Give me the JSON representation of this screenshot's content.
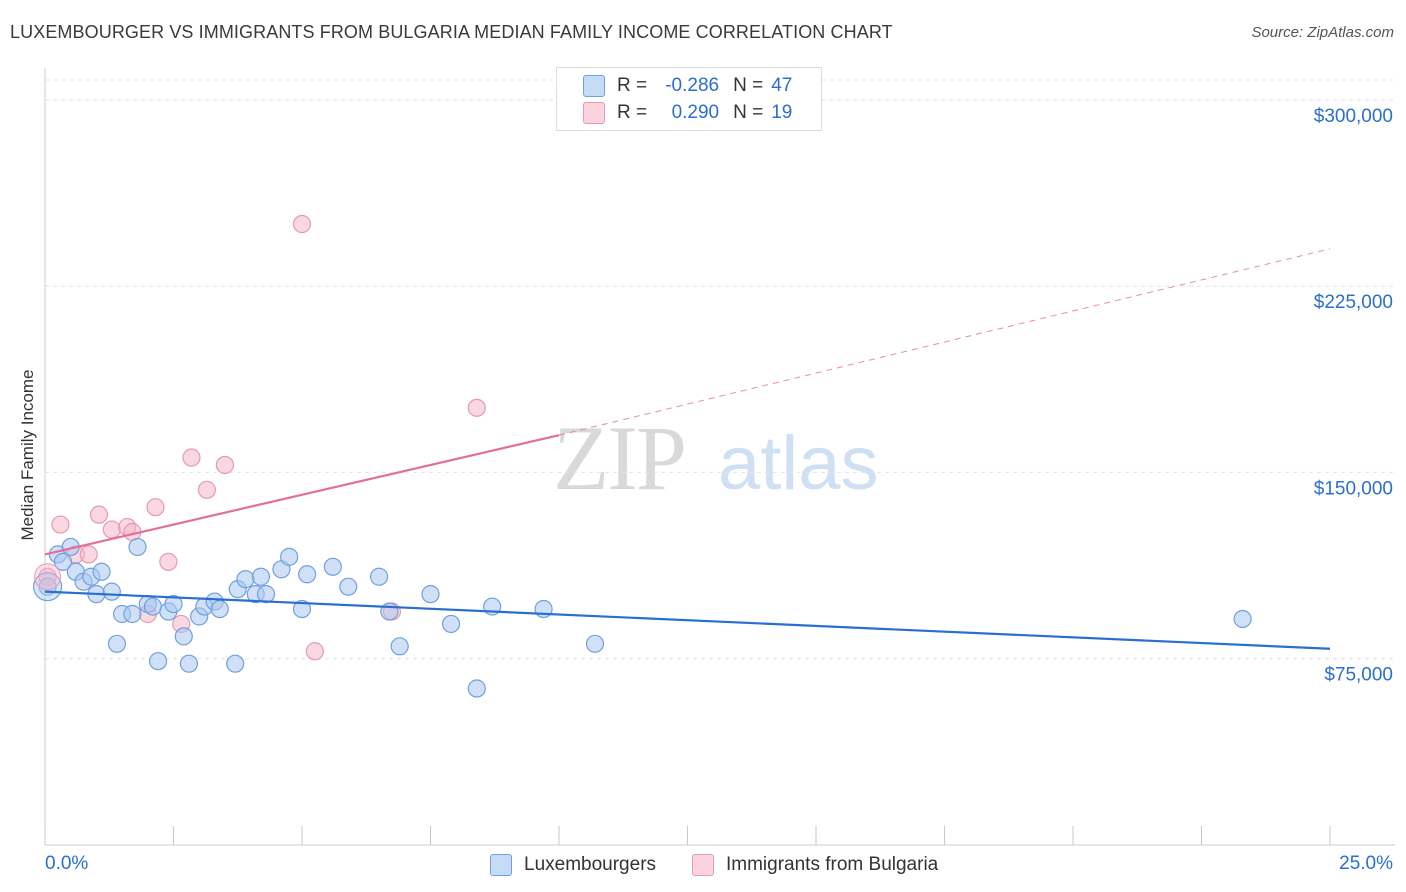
{
  "header": {
    "title": "LUXEMBOURGER VS IMMIGRANTS FROM BULGARIA MEDIAN FAMILY INCOME CORRELATION CHART",
    "source": "Source: ZipAtlas.com"
  },
  "watermark": {
    "zip": "ZIP",
    "atlas": "atlas"
  },
  "legend": {
    "rows": [
      {
        "r_label": "R =",
        "r_value": "-0.286",
        "n_label": "N =",
        "n_value": "47",
        "color": "#a9c9f0"
      },
      {
        "r_label": "R =",
        "r_value": "0.290",
        "n_label": "N =",
        "n_value": "19",
        "color": "#f5b8ca"
      }
    ]
  },
  "bottom_legend": {
    "items": [
      {
        "label": "Luxembourgers",
        "color": "#a9c9f0"
      },
      {
        "label": "Immigrants from Bulgaria",
        "color": "#f5b8ca"
      }
    ]
  },
  "colors": {
    "blue": "#2a6fcf",
    "pink": "#e0709a",
    "blue_fill": "#a9c9f0",
    "pink_fill": "#f5b8ca",
    "tick_text": "#2a6fcf"
  },
  "chart_data": {
    "type": "scatter",
    "title": "LUXEMBOURGER VS IMMIGRANTS FROM BULGARIA MEDIAN FAMILY INCOME CORRELATION CHART",
    "xlabel": "",
    "ylabel": "Median Family Income",
    "xlim": [
      0,
      25
    ],
    "ylim": [
      0,
      310000
    ],
    "x_tick_labels": [
      "0.0%",
      "25.0%"
    ],
    "y_ticks": [
      75000,
      150000,
      225000,
      300000
    ],
    "y_tick_labels": [
      "$75,000",
      "$150,000",
      "$225,000",
      "$300,000"
    ],
    "grid": true,
    "legend_position": "top-center",
    "series": [
      {
        "name": "Luxembourgers",
        "r": -0.286,
        "n": 47,
        "points": [
          [
            0.05,
            104000
          ],
          [
            0.25,
            117000
          ],
          [
            0.35,
            114000
          ],
          [
            0.5,
            120000
          ],
          [
            0.6,
            110000
          ],
          [
            0.75,
            106000
          ],
          [
            0.9,
            108000
          ],
          [
            1.0,
            101000
          ],
          [
            1.1,
            110000
          ],
          [
            1.3,
            102000
          ],
          [
            1.4,
            81000
          ],
          [
            1.5,
            93000
          ],
          [
            1.7,
            93000
          ],
          [
            1.8,
            120000
          ],
          [
            2.0,
            97000
          ],
          [
            2.1,
            96000
          ],
          [
            2.2,
            74000
          ],
          [
            2.4,
            94000
          ],
          [
            2.5,
            97000
          ],
          [
            2.7,
            84000
          ],
          [
            2.8,
            73000
          ],
          [
            3.0,
            92000
          ],
          [
            3.1,
            96000
          ],
          [
            3.3,
            98000
          ],
          [
            3.4,
            95000
          ],
          [
            3.7,
            73000
          ],
          [
            3.75,
            103000
          ],
          [
            3.9,
            107000
          ],
          [
            4.1,
            101000
          ],
          [
            4.2,
            108000
          ],
          [
            4.3,
            101000
          ],
          [
            4.6,
            111000
          ],
          [
            4.75,
            116000
          ],
          [
            5.0,
            95000
          ],
          [
            5.1,
            109000
          ],
          [
            5.6,
            112000
          ],
          [
            5.9,
            104000
          ],
          [
            6.5,
            108000
          ],
          [
            6.7,
            94000
          ],
          [
            6.9,
            80000
          ],
          [
            7.5,
            101000
          ],
          [
            7.9,
            89000
          ],
          [
            8.4,
            63000
          ],
          [
            8.7,
            96000
          ],
          [
            9.7,
            95000
          ],
          [
            10.7,
            81000
          ],
          [
            23.3,
            91000
          ]
        ],
        "trend": {
          "x": [
            0,
            25
          ],
          "y": [
            102000,
            79000
          ]
        }
      },
      {
        "name": "Immigrants from Bulgaria",
        "r": 0.29,
        "n": 19,
        "points": [
          [
            0.05,
            108000
          ],
          [
            0.3,
            129000
          ],
          [
            0.6,
            117000
          ],
          [
            0.85,
            117000
          ],
          [
            1.05,
            133000
          ],
          [
            1.3,
            127000
          ],
          [
            1.6,
            128000
          ],
          [
            1.7,
            126000
          ],
          [
            2.0,
            93000
          ],
          [
            2.15,
            136000
          ],
          [
            2.4,
            114000
          ],
          [
            2.65,
            89000
          ],
          [
            2.85,
            156000
          ],
          [
            3.15,
            143000
          ],
          [
            3.5,
            153000
          ],
          [
            5.0,
            250000
          ],
          [
            5.25,
            78000
          ],
          [
            6.75,
            94000
          ],
          [
            8.4,
            176000
          ]
        ],
        "trend_solid": {
          "x": [
            0,
            10
          ],
          "y": [
            117000,
            165000
          ]
        },
        "trend_dashed": {
          "x": [
            10,
            25
          ],
          "y": [
            165000,
            240000
          ]
        }
      }
    ]
  }
}
